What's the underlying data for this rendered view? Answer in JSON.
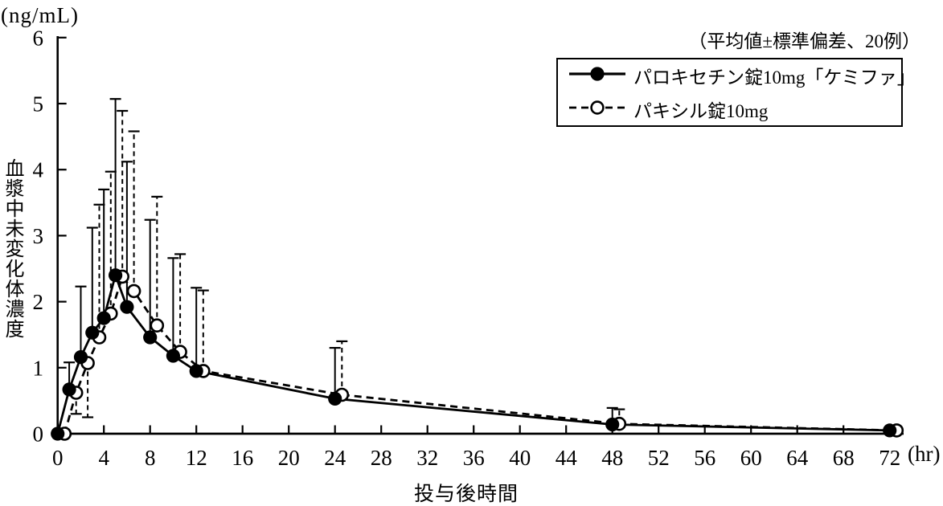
{
  "figure": {
    "y_unit_label": "(ng/mL)",
    "x_unit_label": "(hr)",
    "annotation": "（平均値±標準偏差、20例）",
    "x_axis_title": "投与後時間",
    "y_axis_title": "血漿中未変化体濃度"
  },
  "legend": {
    "entries": [
      {
        "label": "パロキセチン錠10mg「ケミファ」",
        "marker": "filled-circle",
        "line": "solid"
      },
      {
        "label": "パキシル錠10mg",
        "marker": "open-circle",
        "line": "dashed"
      }
    ]
  },
  "chart_data": {
    "type": "line",
    "title": "",
    "xlabel": "投与後時間",
    "ylabel": "血漿中未変化体濃度",
    "x_unit": "hr",
    "y_unit": "ng/mL",
    "annotation": "（平均値±標準偏差、20例）",
    "xlim": [
      0,
      72
    ],
    "ylim": [
      0,
      6
    ],
    "xticks": [
      0,
      4,
      8,
      12,
      16,
      20,
      24,
      28,
      32,
      36,
      40,
      44,
      48,
      52,
      56,
      60,
      64,
      68,
      72
    ],
    "yticks": [
      0,
      1,
      2,
      3,
      4,
      5,
      6
    ],
    "grid": false,
    "legend_position": "top-right",
    "error_bars": "mean + SD caps; open series shows downward caps at t=1,2",
    "x": [
      0,
      1,
      2,
      3,
      4,
      5,
      6,
      8,
      10,
      12,
      24,
      48,
      72
    ],
    "series": [
      {
        "name": "パロキセチン錠10mg「ケミファ」",
        "marker": "filled-circle",
        "line": "solid",
        "color": "#000000",
        "x_display_offset": 0,
        "values": [
          0,
          0.67,
          1.16,
          1.53,
          1.75,
          2.4,
          1.92,
          1.46,
          1.18,
          0.95,
          0.53,
          0.14,
          0.05
        ],
        "sd_cap": [
          null,
          1.08,
          2.23,
          3.12,
          3.7,
          5.07,
          4.12,
          3.24,
          2.66,
          2.21,
          1.3,
          0.39,
          null
        ],
        "sd_dir": [
          "none",
          "up",
          "up",
          "up",
          "up",
          "up",
          "up",
          "up",
          "up",
          "up",
          "up",
          "up",
          "none"
        ]
      },
      {
        "name": "パキシル錠10mg",
        "marker": "open-circle",
        "line": "dashed",
        "color": "#000000",
        "x_display_offset": 0.6,
        "values": [
          0,
          0.62,
          1.07,
          1.46,
          1.82,
          2.38,
          2.16,
          1.64,
          1.24,
          0.95,
          0.59,
          0.15,
          0.05
        ],
        "sd_cap": [
          null,
          0.3,
          0.25,
          3.47,
          3.97,
          4.89,
          4.58,
          3.59,
          2.72,
          2.17,
          1.4,
          0.37,
          null
        ],
        "sd_dir": [
          "none",
          "down",
          "down",
          "up",
          "up",
          "up",
          "up",
          "up",
          "up",
          "up",
          "up",
          "up",
          "none"
        ]
      }
    ]
  }
}
